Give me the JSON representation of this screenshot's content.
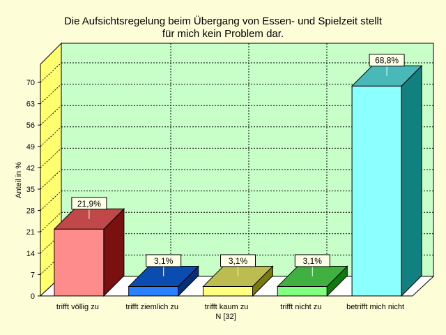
{
  "chart_data": {
    "type": "bar",
    "title_line1": "Die Aufsichtsregelung beim Übergang von Essen- und Spielzeit stellt",
    "title_line2": "für mich kein Problem dar.",
    "ylabel": "Anteil in %",
    "xnote": "N [32]",
    "ylim": [
      0,
      70
    ],
    "yticks": [
      "0",
      "7",
      "14",
      "21",
      "28",
      "35",
      "42",
      "49",
      "56",
      "63",
      "70"
    ],
    "grid": true,
    "categories": [
      "trifft völlig zu",
      "trifft ziemlich zu",
      "trifft kaum zu",
      "trifft nicht zu",
      "betrifft mich nicht"
    ],
    "values": [
      21.9,
      3.1,
      3.1,
      3.1,
      68.8
    ],
    "value_labels": [
      "21,9%",
      "3,1%",
      "3,1%",
      "3,1%",
      "68,8%"
    ],
    "bar_colors": [
      {
        "front": "#ff8c8c",
        "top": "#c04848",
        "side": "#7a1010"
      },
      {
        "front": "#2a80ff",
        "top": "#0a4cb0",
        "side": "#08307a"
      },
      {
        "front": "#ffff80",
        "top": "#bcbc50",
        "side": "#7a7a10"
      },
      {
        "front": "#80ff80",
        "top": "#40b040",
        "side": "#107a10"
      },
      {
        "front": "#8cffff",
        "top": "#48b8b8",
        "side": "#108080"
      }
    ],
    "colors": {
      "plot_background": "#c8ffc8",
      "left_wall": "#ffff70",
      "floor": "#ffffff",
      "page_background": "#fdfdd8"
    }
  }
}
